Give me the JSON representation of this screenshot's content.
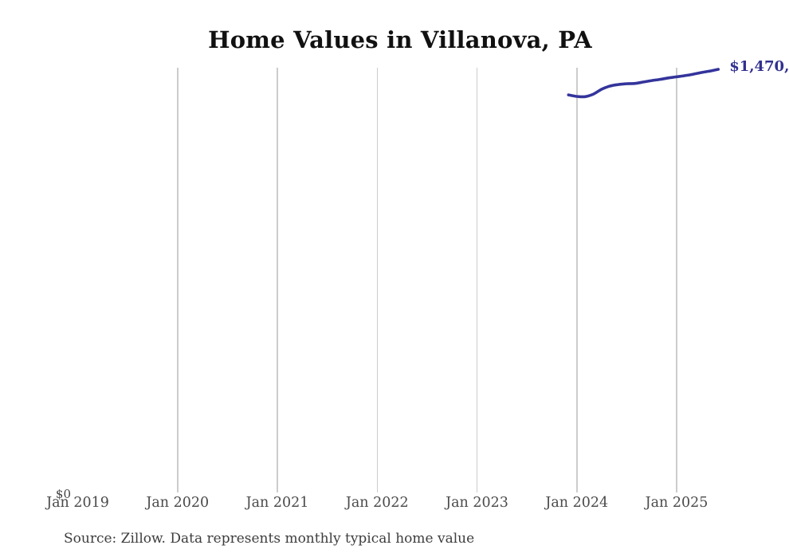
{
  "title": "Home Values in Villanova, PA",
  "source_note": "Source: Zillow. Data represents monthly typical home value",
  "y_axis": {
    "zero_label": "$0"
  },
  "x_axis": {
    "ticks": [
      {
        "label": "Jan 2019",
        "month_offset": 0,
        "gridline": false
      },
      {
        "label": "Jan 2020",
        "month_offset": 12,
        "gridline": true
      },
      {
        "label": "Jan 2021",
        "month_offset": 24,
        "gridline": true
      },
      {
        "label": "Jan 2022",
        "month_offset": 36,
        "gridline": true
      },
      {
        "label": "Jan 2023",
        "month_offset": 48,
        "gridline": true
      },
      {
        "label": "Jan 2024",
        "month_offset": 60,
        "gridline": true
      },
      {
        "label": "Jan 2025",
        "month_offset": 72,
        "gridline": true
      }
    ]
  },
  "line_end_label": "$1,470,",
  "colors": {
    "line": "#34349c",
    "end_label": "#32318f",
    "gridline": "#cccccc",
    "axis_text": "#4a4a4a",
    "title_text": "#111111"
  },
  "chart_data": {
    "type": "line",
    "title": "Home Values in Villanova, PA",
    "xlabel": "",
    "ylabel": "",
    "ylim": [
      0,
      1478000
    ],
    "x_tick_labels": [
      "Jan 2019",
      "Jan 2020",
      "Jan 2021",
      "Jan 2022",
      "Jan 2023",
      "Jan 2024",
      "Jan 2025"
    ],
    "grid": "vertical-yearly",
    "legend_position": "none",
    "x": [
      "Dec 2023",
      "Jan 2024",
      "Feb 2024",
      "Mar 2024",
      "Apr 2024",
      "May 2024",
      "Jun 2024",
      "Jul 2024",
      "Aug 2024",
      "Sep 2024",
      "Oct 2024",
      "Nov 2024",
      "Dec 2024",
      "Jan 2025",
      "Feb 2025",
      "Mar 2025",
      "Apr 2025",
      "May 2025",
      "Jun 2025"
    ],
    "series": [
      {
        "name": "Typical home value",
        "values": [
          1381000,
          1376000,
          1375000,
          1384000,
          1401000,
          1412000,
          1417000,
          1420000,
          1421000,
          1426000,
          1431000,
          1435000,
          1440000,
          1444000,
          1448000,
          1453000,
          1459000,
          1464000,
          1470000
        ]
      }
    ],
    "annotations": [
      {
        "text": "$1,470,",
        "note": "final value label, clipped at right edge of image"
      },
      {
        "text": "$0",
        "note": "y-axis zero label at plot origin"
      }
    ]
  }
}
